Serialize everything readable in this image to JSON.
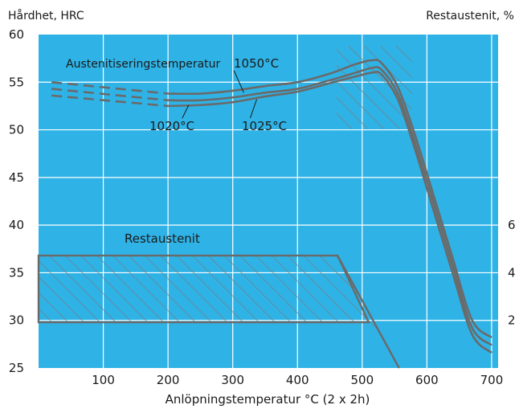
{
  "chart_data": {
    "type": "line",
    "title": "",
    "ylabel_left": "Hårdhet, HRC",
    "ylabel_right": "Restaustenit, %",
    "xlabel": "Anlöpningstemperatur °C (2 x 2h)",
    "xlim": [
      0,
      710
    ],
    "ylim": [
      25,
      60
    ],
    "grid": true,
    "background_color": "#2fb3e6",
    "line_color": "#6a6a6a",
    "x_ticks": [
      "100",
      "200",
      "300",
      "400",
      "500",
      "600",
      "700"
    ],
    "y_ticks_left": [
      "25",
      "30",
      "35",
      "40",
      "45",
      "50",
      "55",
      "60"
    ],
    "y_ticks_right": [
      "2",
      "4",
      "6"
    ],
    "series": [
      {
        "name": "1050°C",
        "dashed": {
          "x": [
            20,
            200
          ],
          "y": [
            55,
            53.8
          ]
        },
        "solid": {
          "x": [
            200,
            250,
            300,
            350,
            400,
            450,
            490,
            515,
            530,
            555,
            580,
            610,
            640,
            670,
            700
          ],
          "y": [
            53.8,
            53.8,
            54.1,
            54.6,
            55.0,
            55.9,
            56.9,
            57.3,
            57.0,
            54.5,
            49.8,
            43.2,
            36.5,
            30.0,
            28.2
          ]
        }
      },
      {
        "name": "1025°C",
        "dashed": {
          "x": [
            20,
            200
          ],
          "y": [
            54.3,
            53.1
          ]
        },
        "solid": {
          "x": [
            200,
            250,
            300,
            350,
            400,
            450,
            490,
            515,
            530,
            555,
            580,
            610,
            640,
            670,
            700
          ],
          "y": [
            53.1,
            53.1,
            53.4,
            53.9,
            54.3,
            55.2,
            56.0,
            56.5,
            56.3,
            53.8,
            49.0,
            42.4,
            35.7,
            29.2,
            27.4
          ]
        }
      },
      {
        "name": "1020°C",
        "dashed": {
          "x": [
            20,
            200
          ],
          "y": [
            53.6,
            52.5
          ]
        },
        "solid": {
          "x": [
            200,
            250,
            300,
            350,
            400,
            450,
            490,
            515,
            530,
            555,
            580,
            610,
            640,
            670,
            700
          ],
          "y": [
            52.5,
            52.6,
            52.9,
            53.5,
            54.0,
            54.9,
            55.6,
            56.0,
            55.8,
            53.2,
            48.3,
            41.6,
            34.9,
            28.5,
            26.6
          ]
        }
      }
    ],
    "annotations": {
      "austenitizing_label": "Austenitiseringstemperatur",
      "restaustenit_label": "Restaustenit"
    },
    "hatched_regions": [
      {
        "name": "Restaustenit",
        "x": [
          0,
          462,
          510,
          0
        ],
        "y": [
          36.8,
          36.8,
          29.8,
          29.8
        ]
      },
      {
        "name": "Restaustenit-tail",
        "x": [
          462,
          557,
          510
        ],
        "y": [
          36.8,
          25,
          29.8
        ]
      },
      {
        "name": "hardness-peak-zone",
        "x": [
          460,
          577
        ],
        "y": [
          50.1,
          58.8
        ]
      }
    ]
  }
}
